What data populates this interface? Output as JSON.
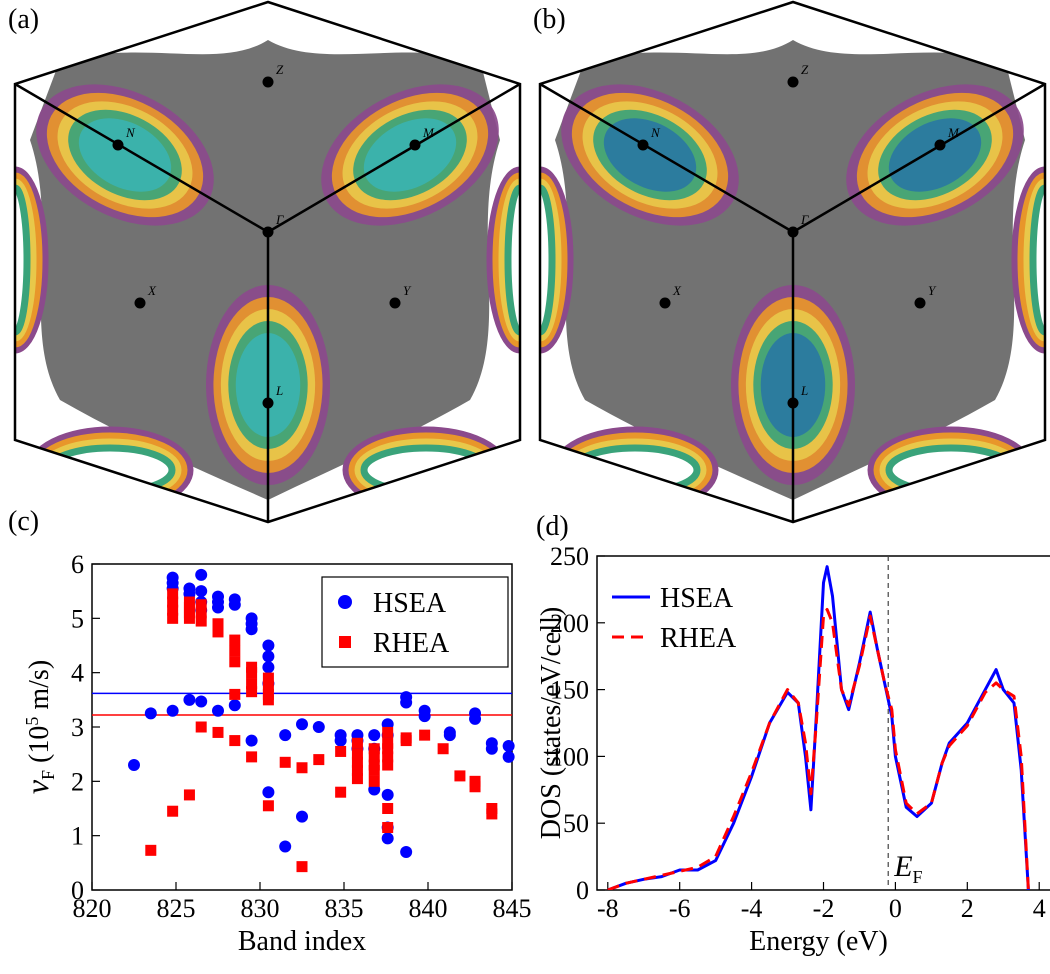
{
  "fermi_surfaces": [
    {
      "label": "(a)",
      "points": [
        "Z",
        "N",
        "M",
        "Γ",
        "X",
        "Y",
        "L"
      ],
      "inner_color": "#3bb3b0"
    },
    {
      "label": "(b)",
      "points": [
        "Z",
        "N",
        "M",
        "Γ",
        "X",
        "Y",
        "L"
      ],
      "inner_color": "#2a78a2"
    }
  ],
  "chart_data": [
    {
      "type": "scatter",
      "panel_label": "(c)",
      "xlabel": "Band index",
      "ylabel_parts": {
        "main": "v",
        "sub": "F",
        "pre": " (10",
        "sup": "5",
        "post": " m/s)"
      },
      "xlim": [
        820,
        845
      ],
      "ylim": [
        0,
        6
      ],
      "xticks": [
        820,
        825,
        830,
        835,
        840,
        845
      ],
      "yticks": [
        0,
        1,
        2,
        3,
        4,
        5,
        6
      ],
      "legend": "upper right",
      "reference_lines": [
        {
          "value": 3.62,
          "color": "#0000ff"
        },
        {
          "value": 3.22,
          "color": "#ff0000"
        }
      ],
      "series": [
        {
          "name": "HSEA",
          "color": "#0000ff",
          "marker": "circle",
          "x": [
            822.5,
            823.5,
            824.8,
            824.8,
            824.8,
            824.8,
            825.8,
            825.8,
            825.8,
            826.5,
            826.5,
            826.5,
            826.5,
            826.5,
            827.5,
            827.5,
            827.5,
            827.5,
            828.5,
            828.5,
            828.5,
            829.5,
            829.5,
            829.5,
            829.5,
            830.5,
            830.5,
            830.5,
            830.5,
            830.5,
            831.5,
            831.5,
            832.5,
            832.5,
            833.5,
            834.8,
            834.8,
            835.8,
            835.8,
            835.8,
            836.8,
            836.8,
            836.8,
            837.6,
            837.6,
            837.6,
            837.6,
            837.6,
            838.7,
            838.7,
            838.7,
            839.8,
            839.8,
            841.3,
            841.3,
            842.8,
            842.8,
            843.8,
            843.8,
            844.8,
            844.8
          ],
          "values": [
            2.3,
            3.25,
            5.75,
            5.65,
            5.55,
            3.3,
            5.55,
            5.45,
            3.5,
            5.8,
            5.5,
            5.3,
            5.15,
            3.47,
            5.4,
            5.3,
            5.2,
            3.3,
            5.35,
            5.25,
            3.4,
            5.0,
            4.9,
            4.8,
            2.75,
            4.5,
            4.3,
            4.1,
            3.8,
            1.8,
            2.85,
            0.8,
            3.05,
            1.35,
            3.0,
            2.85,
            2.75,
            2.85,
            2.75,
            2.6,
            2.85,
            2.6,
            1.85,
            3.05,
            2.85,
            1.75,
            1.15,
            0.95,
            3.55,
            3.45,
            0.7,
            3.3,
            3.2,
            2.9,
            2.85,
            3.25,
            3.15,
            2.7,
            2.6,
            2.65,
            2.45
          ]
        },
        {
          "name": "RHEA",
          "color": "#ff0000",
          "marker": "square",
          "x": [
            823.5,
            824.8,
            824.8,
            824.8,
            824.8,
            824.8,
            825.8,
            825.8,
            825.8,
            825.8,
            825.8,
            826.5,
            826.5,
            826.5,
            826.5,
            827.5,
            827.5,
            827.5,
            828.5,
            828.5,
            828.5,
            828.5,
            828.5,
            829.5,
            829.5,
            829.5,
            829.5,
            829.5,
            830.5,
            830.5,
            830.5,
            830.5,
            830.5,
            831.5,
            832.5,
            832.5,
            833.5,
            834.8,
            834.8,
            835.8,
            835.8,
            835.8,
            835.8,
            835.8,
            836.8,
            836.8,
            836.8,
            836.8,
            836.8,
            837.6,
            837.6,
            837.6,
            837.6,
            837.6,
            837.6,
            837.6,
            838.7,
            838.7,
            839.8,
            840.9,
            841.9,
            842.8,
            842.8,
            843.8,
            843.8
          ],
          "values": [
            0.73,
            5.45,
            5.3,
            5.15,
            5.0,
            1.45,
            5.3,
            5.2,
            5.1,
            5.0,
            1.75,
            5.25,
            5.1,
            4.95,
            3.0,
            4.9,
            4.75,
            2.9,
            4.6,
            4.4,
            4.2,
            3.6,
            2.75,
            4.1,
            4.0,
            3.8,
            3.65,
            2.45,
            3.9,
            3.75,
            3.6,
            3.5,
            1.55,
            2.35,
            2.25,
            0.43,
            2.4,
            2.55,
            1.8,
            2.7,
            2.5,
            2.35,
            2.2,
            2.05,
            2.6,
            2.45,
            2.3,
            2.2,
            2.0,
            2.9,
            2.7,
            2.6,
            2.45,
            2.3,
            1.5,
            1.15,
            2.8,
            2.75,
            2.85,
            2.6,
            2.1,
            2.0,
            1.9,
            1.5,
            1.4
          ]
        }
      ]
    },
    {
      "type": "line",
      "panel_label": "(d)",
      "xlabel": "Energy (eV)",
      "ylabel": "DOS (states/eV/cell)",
      "xlim": [
        -8.3,
        4.3
      ],
      "ylim": [
        0,
        250
      ],
      "xticks": [
        -8,
        -6,
        -4,
        -2,
        0,
        2,
        4
      ],
      "yticks": [
        0,
        50,
        100,
        150,
        200,
        250
      ],
      "legend": "upper left",
      "vline": -0.2,
      "vline_label": {
        "main": "E",
        "sub": "F"
      },
      "x": [
        -8,
        -7.5,
        -7,
        -6.5,
        -6,
        -5.5,
        -5,
        -4.5,
        -4,
        -3.5,
        -3,
        -2.7,
        -2.5,
        -2.35,
        -2.2,
        -2,
        -1.9,
        -1.75,
        -1.5,
        -1.3,
        -1,
        -0.7,
        -0.5,
        -0.3,
        -0.1,
        0,
        0.3,
        0.6,
        1,
        1.3,
        1.5,
        2,
        2.5,
        2.8,
        3,
        3.3,
        3.5,
        3.7
      ],
      "series": [
        {
          "name": "HSEA",
          "color": "#0000ff",
          "dash": false,
          "values": [
            0,
            5,
            8,
            10,
            15,
            15,
            22,
            50,
            85,
            125,
            148,
            140,
            100,
            60,
            130,
            230,
            242,
            220,
            150,
            135,
            170,
            208,
            180,
            155,
            130,
            100,
            62,
            55,
            65,
            95,
            110,
            125,
            150,
            165,
            150,
            140,
            90,
            0
          ]
        },
        {
          "name": "RHEA",
          "color": "#ff0000",
          "dash": true,
          "values": [
            0,
            5,
            8,
            11,
            14,
            17,
            25,
            55,
            88,
            125,
            150,
            140,
            110,
            72,
            125,
            205,
            210,
            200,
            150,
            138,
            168,
            205,
            180,
            155,
            135,
            105,
            65,
            57,
            65,
            95,
            108,
            123,
            148,
            155,
            150,
            145,
            100,
            0
          ]
        }
      ]
    }
  ]
}
